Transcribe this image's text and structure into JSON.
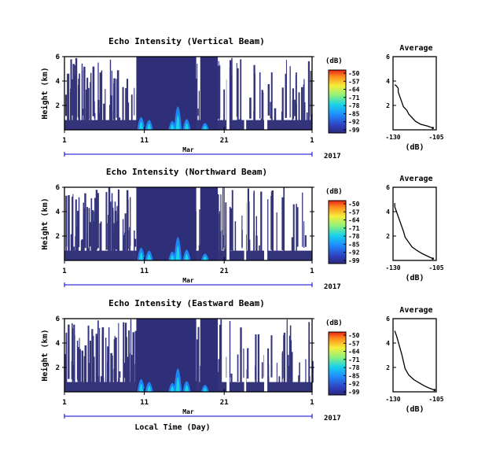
{
  "chart_data": [
    {
      "type": "heatmap",
      "title": "Echo Intensity (Vertical Beam)",
      "ylabel": "Height (km)",
      "yticks": [
        "6",
        "4",
        "2"
      ],
      "ylim": [
        0,
        6
      ],
      "xticks": [
        "1",
        "11",
        "21",
        "1"
      ],
      "xlim_days": [
        1,
        32
      ],
      "month_label": "Mar",
      "year_label": "2017",
      "colorbar": {
        "unit": "(dB)",
        "ticks": [
          "-50",
          "-57",
          "-64",
          "-71",
          "-78",
          "-85",
          "-92",
          "-99"
        ],
        "range": [
          -99,
          -50
        ]
      },
      "profile": {
        "title": "Average",
        "xticks": [
          "-130",
          "-105"
        ],
        "xlabel": "(dB)",
        "yticks": [
          "6",
          "4",
          "2"
        ],
        "xlim": [
          -130,
          -105
        ],
        "ylim": [
          0,
          6
        ],
        "x": [
          -107,
          -110,
          -114,
          -117,
          -119,
          -121,
          -122,
          -124,
          -125,
          -126,
          -127,
          -127,
          -128,
          -129
        ],
        "y": [
          0.15,
          0.3,
          0.45,
          0.7,
          1.0,
          1.3,
          1.6,
          1.9,
          2.3,
          2.7,
          3.1,
          3.4,
          3.6,
          3.7
        ]
      }
    },
    {
      "type": "heatmap",
      "title": "Echo Intensity (Northward Beam)",
      "ylabel": "Height (km)",
      "yticks": [
        "6",
        "4",
        "2"
      ],
      "ylim": [
        0,
        6
      ],
      "xticks": [
        "1",
        "11",
        "21",
        "1"
      ],
      "xlim_days": [
        1,
        32
      ],
      "month_label": "Mar",
      "year_label": "2017",
      "colorbar": {
        "unit": "(dB)",
        "ticks": [
          "-50",
          "-57",
          "-64",
          "-71",
          "-78",
          "-85",
          "-92",
          "-99"
        ],
        "range": [
          -99,
          -50
        ]
      },
      "profile": {
        "title": "Average",
        "xticks": [
          "-130",
          "-105"
        ],
        "xlabel": "(dB)",
        "yticks": [
          "6",
          "4",
          "2"
        ],
        "xlim": [
          -130,
          -105
        ],
        "ylim": [
          0,
          6
        ],
        "x": [
          -107,
          -110,
          -113,
          -116,
          -119,
          -121,
          -123,
          -124,
          -125,
          -126,
          -127,
          -128,
          -129,
          -129
        ],
        "y": [
          0.15,
          0.35,
          0.55,
          0.8,
          1.1,
          1.5,
          1.9,
          2.4,
          2.8,
          3.2,
          3.6,
          4.0,
          4.4,
          4.7
        ]
      }
    },
    {
      "type": "heatmap",
      "title": "Echo Intensity (Eastward Beam)",
      "ylabel": "Height (km)",
      "yticks": [
        "6",
        "4",
        "2"
      ],
      "ylim": [
        0,
        6
      ],
      "xticks": [
        "1",
        "11",
        "21",
        "1"
      ],
      "xlim_days": [
        1,
        32
      ],
      "month_label": "Mar",
      "year_label": "2017",
      "xlabel": "Local Time (Day)",
      "colorbar": {
        "unit": "(dB)",
        "ticks": [
          "-50",
          "-57",
          "-64",
          "-71",
          "-78",
          "-85",
          "-92",
          "-99"
        ],
        "range": [
          -99,
          -50
        ]
      },
      "profile": {
        "title": "Average",
        "xticks": [
          "-130",
          "-105"
        ],
        "xlabel": "(dB)",
        "yticks": [
          "6",
          "4",
          "2"
        ],
        "xlim": [
          -130,
          -105
        ],
        "ylim": [
          0,
          6
        ],
        "x": [
          -106,
          -109,
          -112,
          -115,
          -118,
          -121,
          -123,
          -124,
          -125,
          -126,
          -127,
          -128,
          -129
        ],
        "y": [
          0.15,
          0.3,
          0.5,
          0.75,
          1.0,
          1.4,
          1.9,
          2.5,
          3.1,
          3.6,
          4.1,
          4.6,
          5.0
        ]
      }
    }
  ]
}
